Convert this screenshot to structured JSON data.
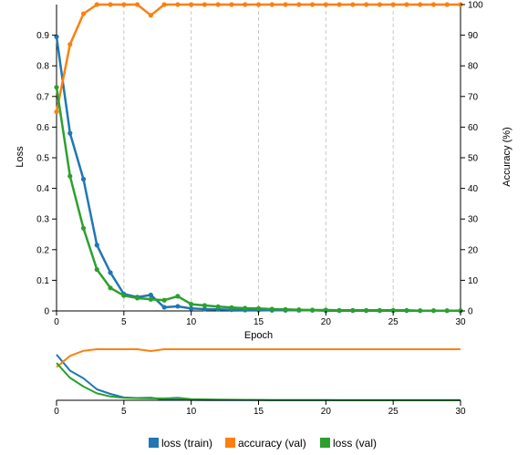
{
  "chart_data": [
    {
      "type": "line",
      "xlabel": "Epoch",
      "ylabel_left": "Loss",
      "ylabel_right": "Accuracy (%)",
      "xlim": [
        0,
        30
      ],
      "ylim_left": [
        0,
        1.0
      ],
      "ylim_right": [
        0,
        100
      ],
      "x_ticks": [
        0,
        5,
        10,
        15,
        20,
        25,
        30
      ],
      "y_ticks_left": [
        0,
        0.1,
        0.2,
        0.3,
        0.4,
        0.5,
        0.6,
        0.7,
        0.8,
        0.9
      ],
      "y_ticks_right": [
        0,
        10,
        20,
        30,
        40,
        50,
        60,
        70,
        80,
        90,
        100
      ],
      "grid": "vertical dashed at major x ticks",
      "x": [
        0,
        1,
        2,
        3,
        4,
        5,
        6,
        7,
        8,
        9,
        10,
        11,
        12,
        13,
        14,
        15,
        16,
        17,
        18,
        19,
        20,
        21,
        22,
        23,
        24,
        25,
        26,
        27,
        28,
        29,
        30
      ],
      "series": [
        {
          "name": "loss (train)",
          "axis": "left",
          "color": "#1f77b4",
          "values": [
            0.895,
            0.58,
            0.43,
            0.215,
            0.125,
            0.055,
            0.045,
            0.052,
            0.012,
            0.015,
            0.008,
            0.006,
            0.005,
            0.004,
            0.003,
            0.003,
            0.002,
            0.002,
            0.002,
            0.002,
            0.001,
            0.001,
            0.001,
            0.001,
            0.001,
            0.001,
            0.001,
            0.001,
            0.001,
            0.001,
            0.001
          ]
        },
        {
          "name": "accuracy (val)",
          "axis": "right",
          "color": "#ff7f0e",
          "values": [
            65,
            87,
            97,
            100,
            100,
            100,
            100,
            96.5,
            100,
            100,
            100,
            100,
            100,
            100,
            100,
            100,
            100,
            100,
            100,
            100,
            100,
            100,
            100,
            100,
            100,
            100,
            100,
            100,
            100,
            100,
            100
          ]
        },
        {
          "name": "loss (val)",
          "axis": "left",
          "color": "#2ca02c",
          "values": [
            0.73,
            0.44,
            0.27,
            0.135,
            0.075,
            0.05,
            0.042,
            0.038,
            0.035,
            0.048,
            0.022,
            0.018,
            0.014,
            0.011,
            0.009,
            0.008,
            0.006,
            0.005,
            0.004,
            0.003,
            0.003,
            0.002,
            0.002,
            0.002,
            0.002,
            0.002,
            0.002,
            0.001,
            0.001,
            0.001,
            0.001
          ]
        }
      ]
    },
    {
      "type": "line",
      "role": "overview",
      "xlim": [
        0,
        30
      ],
      "x_ticks": [
        0,
        5,
        10,
        15,
        20,
        25,
        30
      ]
    }
  ]
}
